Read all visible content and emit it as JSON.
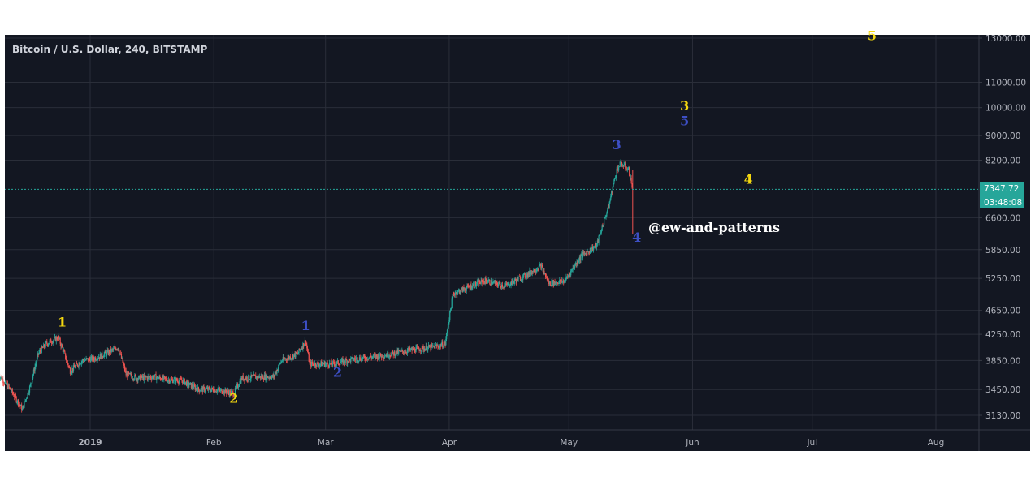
{
  "chart_data": {
    "type": "candlestick",
    "title": "Bitcoin / U.S. Dollar, 240, BITSTAMP",
    "y_scale": "log",
    "y_ticks": [
      3130,
      3450,
      3850,
      4250,
      4650,
      5250,
      5850,
      6600,
      8200,
      9000,
      10000,
      11000,
      13000
    ],
    "y_tick_labels": [
      "3130.00",
      "3450.00",
      "3850.00",
      "4250.00",
      "4650.00",
      "5250.00",
      "5850.00",
      "6600.00",
      "8200.00",
      "9000.00",
      "10000.00",
      "11000.00",
      "13000.00"
    ],
    "x_labels": [
      "2019",
      "Feb",
      "Mar",
      "Apr",
      "May",
      "Jun",
      "Jul",
      "Aug"
    ],
    "x_label_dates": [
      "2019-01-01",
      "2019-02-01",
      "2019-03-01",
      "2019-04-01",
      "2019-05-01",
      "2019-06-01",
      "2019-07-01",
      "2019-08-01"
    ],
    "x_range": [
      "2018-12-09",
      "2019-08-31"
    ],
    "last_price": 7347.72,
    "last_price_label": "7347.72",
    "countdown_label": "03:48:08",
    "price_path": [
      [
        "2018-12-09",
        3650
      ],
      [
        "2018-12-12",
        3450
      ],
      [
        "2018-12-15",
        3200
      ],
      [
        "2018-12-17",
        3500
      ],
      [
        "2018-12-19",
        3950
      ],
      [
        "2018-12-21",
        4100
      ],
      [
        "2018-12-24",
        4200
      ],
      [
        "2018-12-27",
        3700
      ],
      [
        "2018-12-30",
        3850
      ],
      [
        "2019-01-02",
        3880
      ],
      [
        "2019-01-05",
        3950
      ],
      [
        "2019-01-08",
        4050
      ],
      [
        "2019-01-10",
        3650
      ],
      [
        "2019-01-13",
        3600
      ],
      [
        "2019-01-17",
        3620
      ],
      [
        "2019-01-20",
        3580
      ],
      [
        "2019-01-24",
        3570
      ],
      [
        "2019-01-28",
        3450
      ],
      [
        "2019-02-01",
        3450
      ],
      [
        "2019-02-06",
        3400
      ],
      [
        "2019-02-08",
        3600
      ],
      [
        "2019-02-12",
        3620
      ],
      [
        "2019-02-16",
        3620
      ],
      [
        "2019-02-18",
        3850
      ],
      [
        "2019-02-22",
        3950
      ],
      [
        "2019-02-24",
        4150
      ],
      [
        "2019-02-25",
        3800
      ],
      [
        "2019-02-28",
        3800
      ],
      [
        "2019-03-03",
        3800
      ],
      [
        "2019-03-08",
        3870
      ],
      [
        "2019-03-15",
        3920
      ],
      [
        "2019-03-22",
        4000
      ],
      [
        "2019-03-28",
        4050
      ],
      [
        "2019-03-31",
        4100
      ],
      [
        "2019-04-02",
        4950
      ],
      [
        "2019-04-05",
        5050
      ],
      [
        "2019-04-10",
        5200
      ],
      [
        "2019-04-15",
        5100
      ],
      [
        "2019-04-20",
        5300
      ],
      [
        "2019-04-24",
        5500
      ],
      [
        "2019-04-26",
        5150
      ],
      [
        "2019-04-30",
        5200
      ],
      [
        "2019-05-04",
        5700
      ],
      [
        "2019-05-08",
        5950
      ],
      [
        "2019-05-11",
        6900
      ],
      [
        "2019-05-13",
        7900
      ],
      [
        "2019-05-14",
        8100
      ],
      [
        "2019-05-15",
        8000
      ],
      [
        "2019-05-16",
        7900
      ],
      [
        "2019-05-17",
        7347.72
      ]
    ],
    "wave_labels": [
      {
        "text": "1",
        "color": "#f5d80f",
        "date": "2018-12-25",
        "price": 4380
      },
      {
        "text": "2",
        "color": "#f5d80f",
        "date": "2019-02-06",
        "price": 3280
      },
      {
        "text": "1",
        "color": "#3d4fc4",
        "date": "2019-02-24",
        "price": 4320
      },
      {
        "text": "2",
        "color": "#3d4fc4",
        "date": "2019-03-04",
        "price": 3620
      },
      {
        "text": "3",
        "color": "#3d4fc4",
        "date": "2019-05-13",
        "price": 8550
      },
      {
        "text": "4",
        "color": "#3d4fc4",
        "date": "2019-05-18",
        "price": 6030
      },
      {
        "text": "3",
        "color": "#f5d80f",
        "date": "2019-05-30",
        "price": 9900
      },
      {
        "text": "5",
        "color": "#3d4fc4",
        "date": "2019-05-30",
        "price": 9350
      },
      {
        "text": "4",
        "color": "#f5d80f",
        "date": "2019-06-15",
        "price": 7500
      },
      {
        "text": "5",
        "color": "#f5d80f",
        "date": "2019-07-16",
        "price": 12900
      }
    ],
    "watermark": "@ew-and-patterns",
    "colors": {
      "background": "#131722",
      "grid": "#2a2e39",
      "up": "#26a69a",
      "down": "#ef5350",
      "price_line": "#26a69a"
    }
  }
}
